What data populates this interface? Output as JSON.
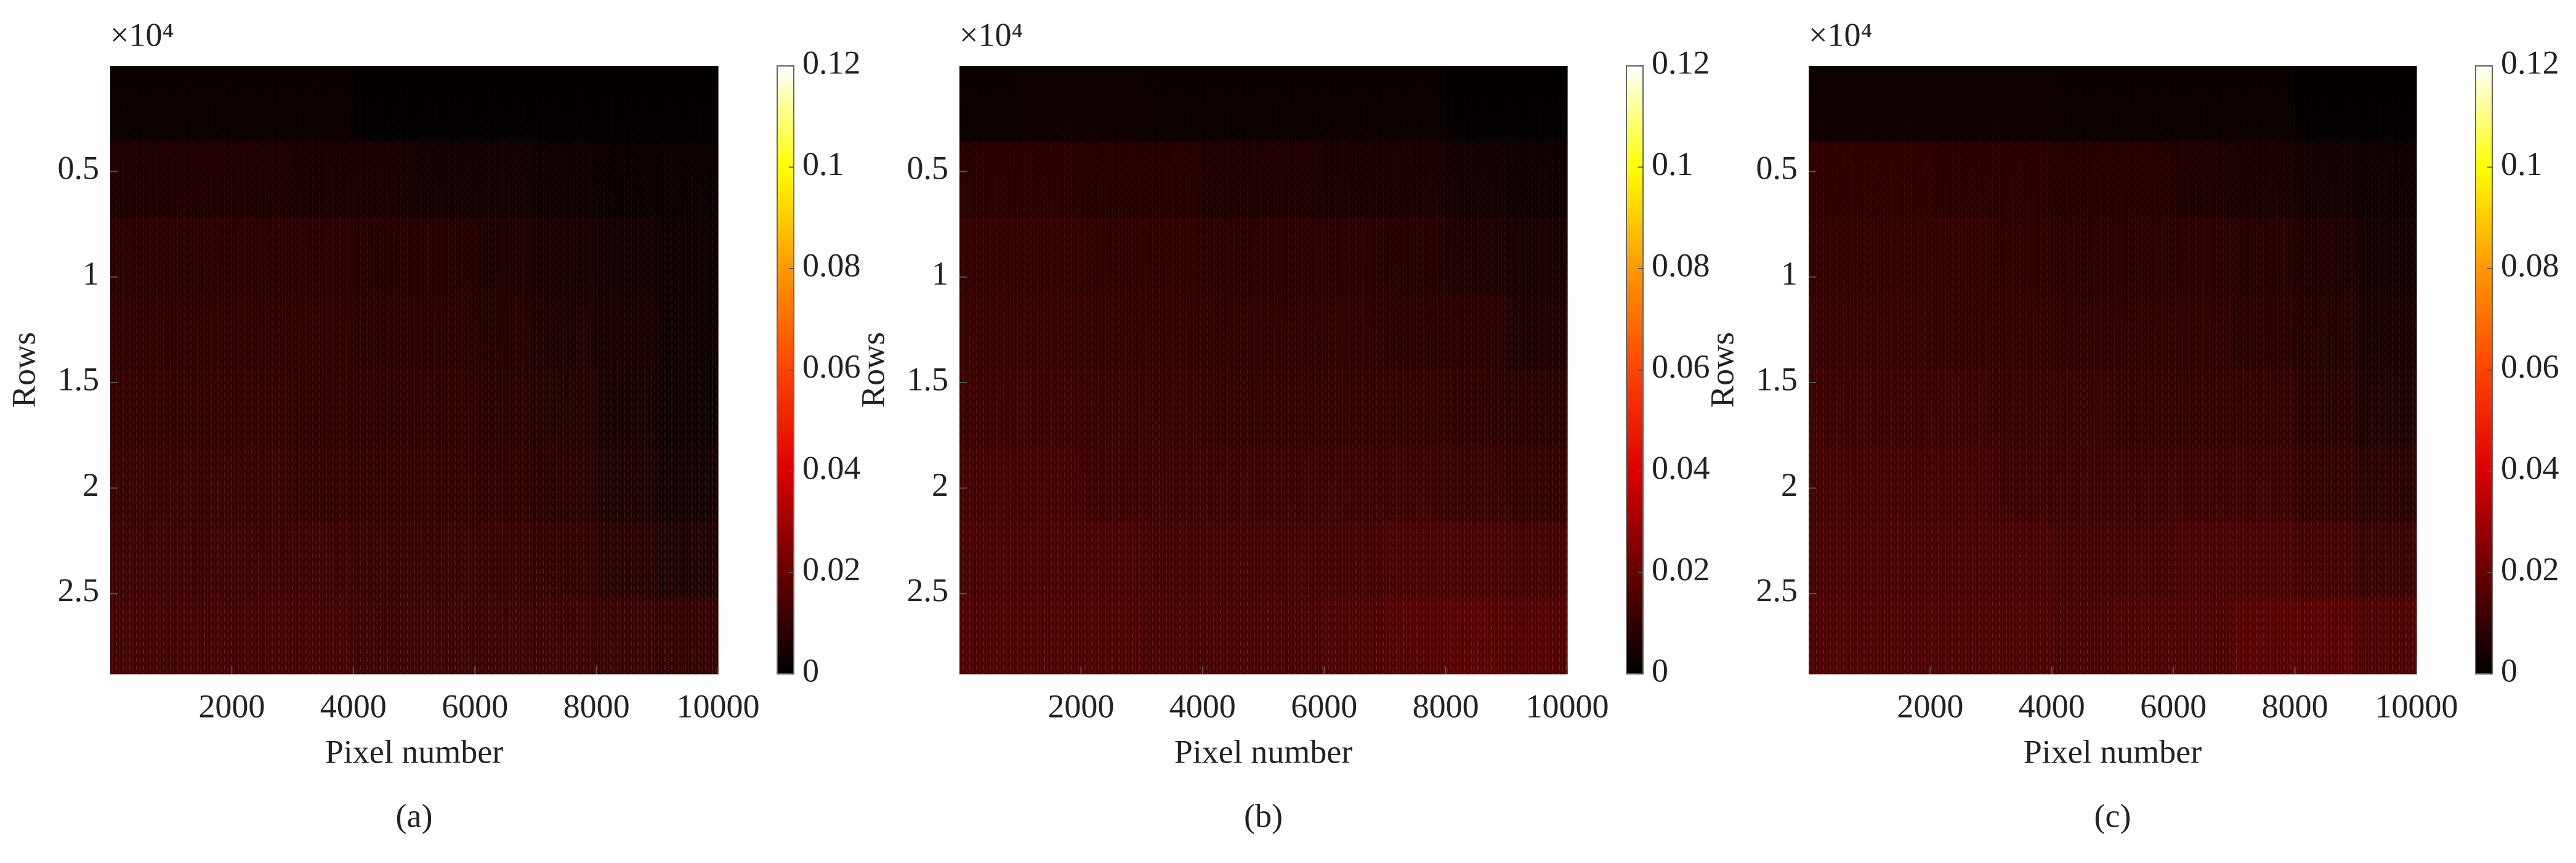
{
  "chart_data": [
    {
      "type": "heatmap",
      "panel_label": "(a)",
      "xlabel": "Pixel number",
      "ylabel": "Rows",
      "y_multiplier": "×10⁴",
      "xlim": [
        0,
        10000
      ],
      "xticks": [
        2000,
        4000,
        6000,
        8000,
        10000
      ],
      "ylim": [
        0,
        2.88
      ],
      "yticks": [
        0.5,
        1,
        1.5,
        2,
        2.5
      ],
      "y_reversed": true,
      "clim": [
        0,
        0.12
      ],
      "cticks": [
        0,
        0.02,
        0.04,
        0.06,
        0.08,
        0.1,
        0.12
      ],
      "colormap": [
        "#000000",
        "#660000",
        "#dd0000",
        "#ff4400",
        "#ff9900",
        "#ffff00",
        "#ffffff"
      ],
      "z": [
        [
          0.002,
          0.002,
          0.002,
          0.002,
          0.001,
          0.001,
          0.001,
          0.001,
          0.001,
          0.001
        ],
        [
          0.006,
          0.006,
          0.006,
          0.005,
          0.005,
          0.004,
          0.004,
          0.003,
          0.002,
          0.002
        ],
        [
          0.008,
          0.008,
          0.008,
          0.008,
          0.007,
          0.007,
          0.006,
          0.005,
          0.004,
          0.003
        ],
        [
          0.009,
          0.009,
          0.009,
          0.009,
          0.008,
          0.008,
          0.007,
          0.006,
          0.005,
          0.003
        ],
        [
          0.01,
          0.01,
          0.01,
          0.009,
          0.009,
          0.009,
          0.008,
          0.007,
          0.005,
          0.003
        ],
        [
          0.011,
          0.011,
          0.011,
          0.01,
          0.01,
          0.01,
          0.009,
          0.008,
          0.006,
          0.004
        ],
        [
          0.012,
          0.012,
          0.012,
          0.012,
          0.011,
          0.011,
          0.011,
          0.01,
          0.008,
          0.006
        ],
        [
          0.013,
          0.013,
          0.013,
          0.013,
          0.012,
          0.012,
          0.012,
          0.012,
          0.011,
          0.01
        ]
      ]
    },
    {
      "type": "heatmap",
      "panel_label": "(b)",
      "xlabel": "Pixel number",
      "ylabel": "Rows",
      "y_multiplier": "×10⁴",
      "xlim": [
        0,
        10000
      ],
      "xticks": [
        2000,
        4000,
        6000,
        8000,
        10000
      ],
      "ylim": [
        0,
        2.88
      ],
      "yticks": [
        0.5,
        1,
        1.5,
        2,
        2.5
      ],
      "y_reversed": true,
      "clim": [
        0,
        0.12
      ],
      "cticks": [
        0,
        0.02,
        0.04,
        0.06,
        0.08,
        0.1,
        0.12
      ],
      "colormap": [
        "#000000",
        "#660000",
        "#dd0000",
        "#ff4400",
        "#ff9900",
        "#ffff00",
        "#ffffff"
      ],
      "z": [
        [
          0.002,
          0.003,
          0.003,
          0.002,
          0.002,
          0.002,
          0.002,
          0.002,
          0.001,
          0.001
        ],
        [
          0.008,
          0.008,
          0.007,
          0.007,
          0.006,
          0.006,
          0.005,
          0.005,
          0.004,
          0.003
        ],
        [
          0.01,
          0.01,
          0.009,
          0.009,
          0.008,
          0.008,
          0.008,
          0.007,
          0.006,
          0.005
        ],
        [
          0.011,
          0.011,
          0.01,
          0.01,
          0.009,
          0.009,
          0.009,
          0.008,
          0.008,
          0.006
        ],
        [
          0.012,
          0.012,
          0.011,
          0.011,
          0.01,
          0.01,
          0.01,
          0.01,
          0.009,
          0.008
        ],
        [
          0.013,
          0.013,
          0.012,
          0.012,
          0.012,
          0.012,
          0.012,
          0.012,
          0.011,
          0.01
        ],
        [
          0.014,
          0.014,
          0.014,
          0.013,
          0.013,
          0.013,
          0.013,
          0.014,
          0.014,
          0.013
        ],
        [
          0.015,
          0.015,
          0.015,
          0.014,
          0.014,
          0.014,
          0.015,
          0.016,
          0.017,
          0.016
        ]
      ]
    },
    {
      "type": "heatmap",
      "panel_label": "(c)",
      "xlabel": "Pixel number",
      "ylabel": "Rows",
      "y_multiplier": "×10⁴",
      "xlim": [
        0,
        10000
      ],
      "xticks": [
        2000,
        4000,
        6000,
        8000,
        10000
      ],
      "ylim": [
        0,
        2.88
      ],
      "yticks": [
        0.5,
        1,
        1.5,
        2,
        2.5
      ],
      "y_reversed": true,
      "clim": [
        0,
        0.12
      ],
      "cticks": [
        0,
        0.02,
        0.04,
        0.06,
        0.08,
        0.1,
        0.12
      ],
      "colormap": [
        "#000000",
        "#660000",
        "#dd0000",
        "#ff4400",
        "#ff9900",
        "#ffff00",
        "#ffffff"
      ],
      "z": [
        [
          0.003,
          0.003,
          0.003,
          0.003,
          0.002,
          0.002,
          0.002,
          0.002,
          0.001,
          0.001
        ],
        [
          0.009,
          0.009,
          0.008,
          0.008,
          0.007,
          0.007,
          0.006,
          0.005,
          0.004,
          0.003
        ],
        [
          0.01,
          0.01,
          0.01,
          0.009,
          0.008,
          0.008,
          0.008,
          0.007,
          0.006,
          0.004
        ],
        [
          0.011,
          0.011,
          0.01,
          0.01,
          0.009,
          0.009,
          0.009,
          0.008,
          0.007,
          0.005
        ],
        [
          0.012,
          0.012,
          0.012,
          0.011,
          0.011,
          0.01,
          0.01,
          0.01,
          0.008,
          0.006
        ],
        [
          0.013,
          0.013,
          0.013,
          0.012,
          0.012,
          0.012,
          0.012,
          0.012,
          0.01,
          0.008
        ],
        [
          0.014,
          0.014,
          0.014,
          0.014,
          0.013,
          0.013,
          0.014,
          0.014,
          0.013,
          0.011
        ],
        [
          0.015,
          0.015,
          0.015,
          0.015,
          0.014,
          0.015,
          0.015,
          0.017,
          0.017,
          0.015
        ]
      ]
    }
  ]
}
